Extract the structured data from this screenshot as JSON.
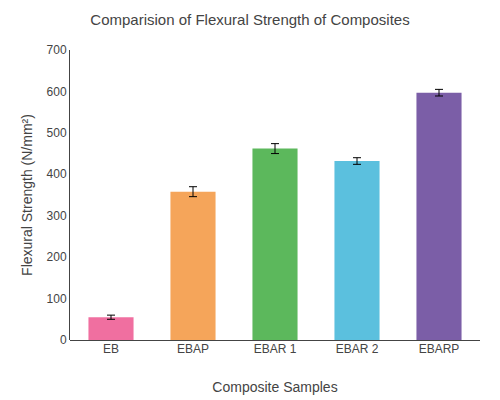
{
  "chart_data": {
    "type": "bar",
    "title": "Comparision of Flexural Strength of Composites",
    "xlabel": "Composite Samples",
    "ylabel": "Flexural Strength (N/mm²)",
    "categories": [
      "EB",
      "EBAP",
      "EBAR 1",
      "EBAR 2",
      "EBARP"
    ],
    "values": [
      55,
      358,
      462,
      432,
      597
    ],
    "errors": [
      5,
      12,
      12,
      8,
      8
    ],
    "colors": [
      "#F06FA0",
      "#F5A55A",
      "#5CB85C",
      "#5BC0DE",
      "#7B5EA7"
    ],
    "ylim": [
      0,
      700
    ],
    "yticks": [
      0,
      100,
      200,
      300,
      400,
      500,
      600,
      700
    ],
    "grid": false
  }
}
